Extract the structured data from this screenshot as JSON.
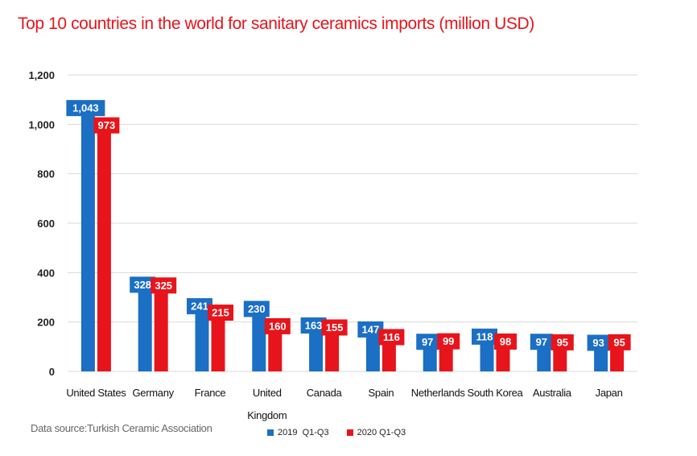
{
  "chart_data": {
    "type": "bar",
    "title": "Top 10 countries in the world for sanitary ceramics imports (million USD)",
    "source": "Data source:Turkish Ceramic Association",
    "categories": [
      [
        "United States"
      ],
      [
        "Germany"
      ],
      [
        "France"
      ],
      [
        "United",
        "Kingdom"
      ],
      [
        "Canada"
      ],
      [
        "Spain"
      ],
      [
        "Netherlands"
      ],
      [
        "South Korea"
      ],
      [
        "Australia"
      ],
      [
        "Japan"
      ]
    ],
    "series": [
      {
        "name": "2019  Q1-Q3",
        "color": "#1b6fc4",
        "values": [
          1043,
          328,
          241,
          230,
          163,
          147,
          97,
          118,
          97,
          93
        ],
        "labels": [
          "1,043",
          "328",
          "241",
          "230",
          "163",
          "147",
          "97",
          "118",
          "97",
          "93"
        ]
      },
      {
        "name": "2020 Q1-Q3",
        "color": "#e8141b",
        "values": [
          973,
          325,
          215,
          160,
          155,
          116,
          99,
          98,
          95,
          95
        ],
        "labels": [
          "973",
          "325",
          "215",
          "160",
          "155",
          "116",
          "99",
          "98",
          "95",
          "95"
        ]
      }
    ],
    "ylim": [
      0,
      1200
    ],
    "yticks": [
      0,
      200,
      400,
      600,
      800,
      1000,
      1200
    ],
    "ytick_labels": [
      "0",
      "200",
      "400",
      "600",
      "800",
      "1,000",
      "1,200"
    ],
    "grid": true,
    "legend_position": "bottom"
  }
}
